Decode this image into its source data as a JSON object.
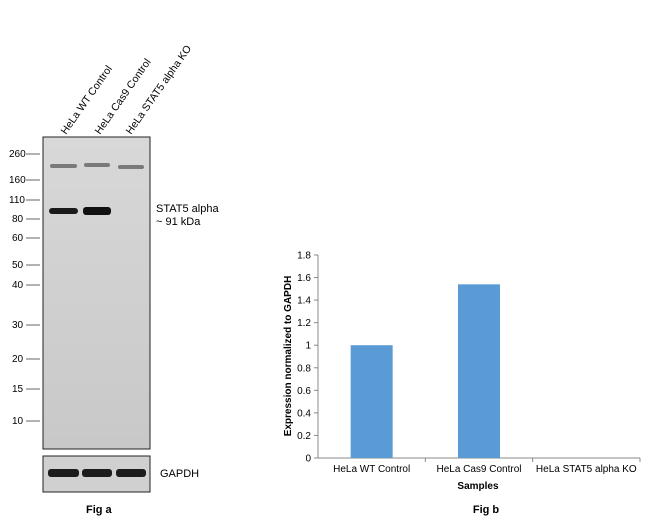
{
  "colors": {
    "blot_background": "#cfcfcf",
    "band_dark": "#1a1a1a",
    "bar_fill": "#5b9bd5",
    "axis": "#888888"
  },
  "fig_a": {
    "caption": "Fig a",
    "lanes": [
      "HeLa WT Control",
      "HeLa Cas9 Control",
      "HeLa STAT5 alpha KO"
    ],
    "markers": [
      "260",
      "160",
      "110",
      "80",
      "60",
      "50",
      "40",
      "30",
      "20",
      "15",
      "10"
    ],
    "band_annotation_line1": "STAT5 alpha",
    "band_annotation_line2": "~ 91 kDa",
    "loading_control_label": "GAPDH"
  },
  "fig_b": {
    "caption": "Fig b"
  },
  "chart_data": {
    "type": "bar",
    "categories": [
      "HeLa WT Control",
      "HeLa Cas9 Control",
      "HeLa STAT5 alpha KO"
    ],
    "values": [
      1.0,
      1.54,
      0
    ],
    "title": "",
    "xlabel": "Samples",
    "ylabel": "Expression normalized to GAPDH",
    "ylim": [
      0,
      1.8
    ],
    "yticks": [
      "0",
      "0.2",
      "0.4",
      "0.6",
      "0.8",
      "1",
      "1.2",
      "1.4",
      "1.6",
      "1.8"
    ],
    "grid": false,
    "legend": "none"
  }
}
